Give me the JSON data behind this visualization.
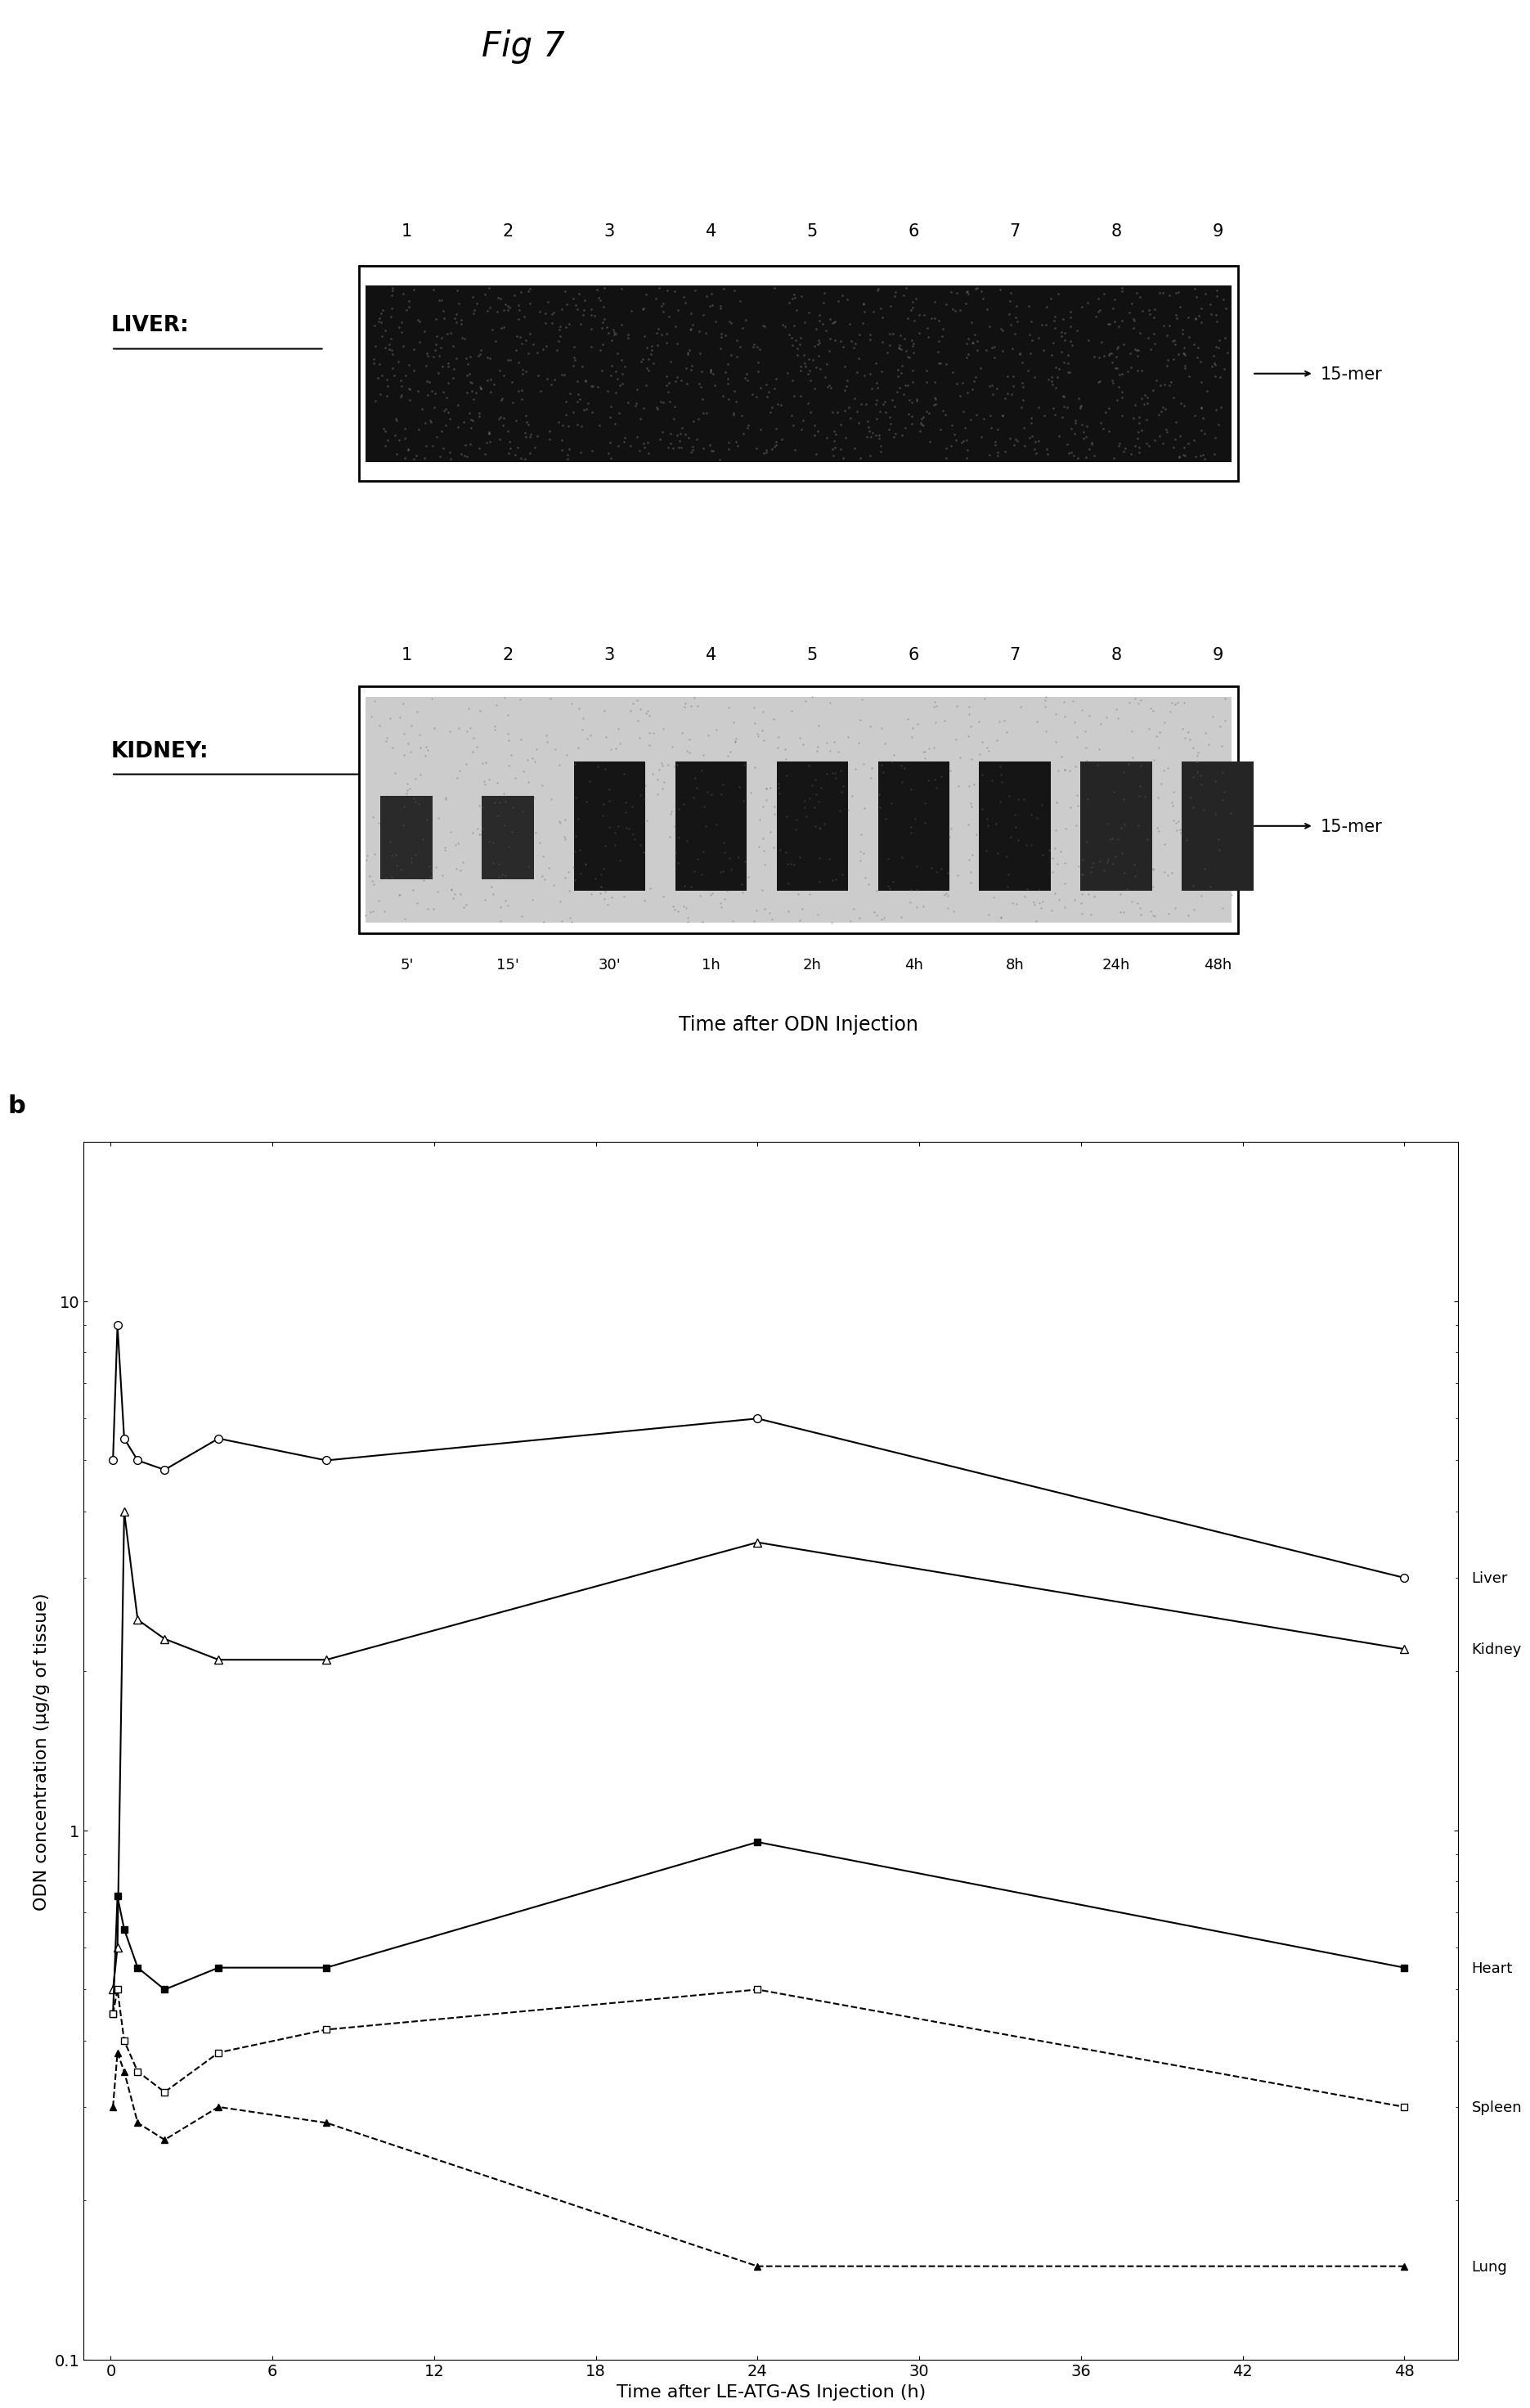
{
  "fig_label": "Fig 7",
  "liver_label": "LIVER:",
  "kidney_label": "KIDNEY:",
  "lane_numbers": [
    "1",
    "2",
    "3",
    "4",
    "5",
    "6",
    "7",
    "8",
    "9"
  ],
  "time_labels_kidney": [
    "5'",
    "15'",
    "30'",
    "1h",
    "2h",
    "4h",
    "8h",
    "24h",
    "48h"
  ],
  "time_xlabel": "Time after ODN Injection",
  "mer_label": "15-mer",
  "graph_panel_label": "b",
  "graph_xlabel": "Time after LE-ATG-AS Injection (h)",
  "graph_ylabel": "ODN concentration (μg/g of tissue)",
  "graph_xticks": [
    0,
    6,
    12,
    18,
    24,
    30,
    36,
    42,
    48
  ],
  "time_points": [
    0.083,
    0.25,
    0.5,
    1,
    2,
    4,
    8,
    24,
    48
  ],
  "liver_data": [
    5.0,
    9.0,
    5.5,
    5.0,
    4.8,
    5.5,
    5.0,
    6.0,
    3.0
  ],
  "kidney_data": [
    0.5,
    0.6,
    4.0,
    2.5,
    2.3,
    2.1,
    2.1,
    3.5,
    2.2
  ],
  "heart_data": [
    0.45,
    0.75,
    0.65,
    0.55,
    0.5,
    0.55,
    0.55,
    0.95,
    0.55
  ],
  "spleen_data": [
    0.45,
    0.5,
    0.4,
    0.35,
    0.32,
    0.38,
    0.42,
    0.5,
    0.3
  ],
  "lung_data": [
    0.3,
    0.38,
    0.35,
    0.28,
    0.26,
    0.3,
    0.28,
    0.15,
    0.15
  ],
  "bg_color": "#ffffff"
}
